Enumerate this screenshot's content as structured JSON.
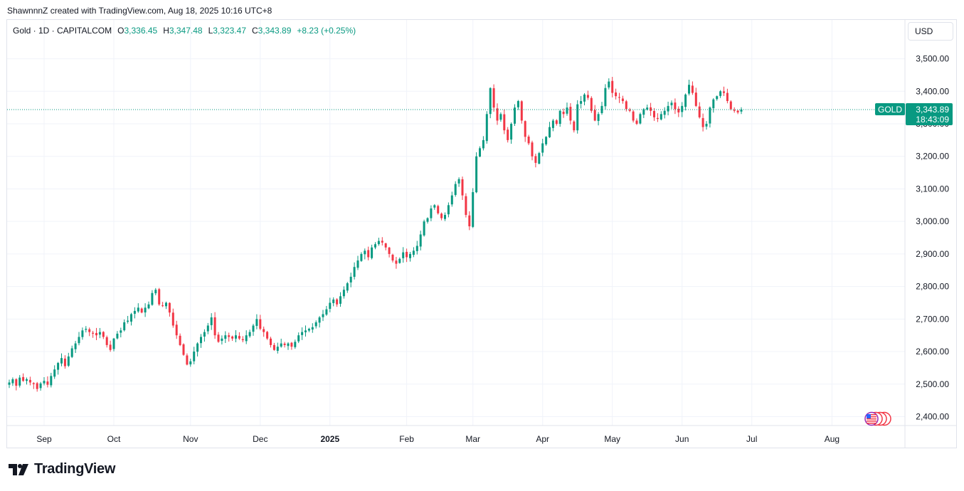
{
  "header": {
    "credit": "ShawnnnZ created with TradingView.com, Aug 18, 2025 10:16 UTC+8"
  },
  "legend": {
    "symbol": "Gold · 1D · CAPITALCOM",
    "o_label": "O",
    "o_value": "3,336.45",
    "h_label": "H",
    "h_value": "3,347.48",
    "l_label": "L",
    "l_value": "3,323.47",
    "c_label": "C",
    "c_value": "3,343.89",
    "change": "+8.23 (+0.25%)"
  },
  "currency_button": "USD",
  "price_tag": {
    "name": "GOLD",
    "price": "3,343.89",
    "countdown": "18:43:09"
  },
  "brand": {
    "name": "TradingView"
  },
  "colors": {
    "up": "#089981",
    "down": "#f23645",
    "grid": "#f0f3fa",
    "axis_text": "#131722",
    "border": "#e0e3eb"
  },
  "icons": [
    "us-flag-icon",
    "calendar-events-icon",
    "tradingview-logo-icon"
  ],
  "chart_data": {
    "type": "candlestick",
    "timeframe": "1D",
    "y_ticks": [
      2400,
      2500,
      2600,
      2700,
      2800,
      2900,
      3000,
      3100,
      3200,
      3300,
      3400,
      3500
    ],
    "y_tick_labels": [
      "2,400.00",
      "2,500.00",
      "2,600.00",
      "2,700.00",
      "2,800.00",
      "2,900.00",
      "3,000.00",
      "3,100.00",
      "3,200.00",
      "3,300.00",
      "3,400.00",
      "3,500.00"
    ],
    "x_labels": [
      {
        "label": "Sep",
        "bar": 10,
        "bold": false
      },
      {
        "label": "Oct",
        "bar": 30,
        "bold": false
      },
      {
        "label": "Nov",
        "bar": 52,
        "bold": false
      },
      {
        "label": "Dec",
        "bar": 72,
        "bold": false
      },
      {
        "label": "2025",
        "bar": 92,
        "bold": true
      },
      {
        "label": "Feb",
        "bar": 114,
        "bold": false
      },
      {
        "label": "Mar",
        "bar": 133,
        "bold": false
      },
      {
        "label": "Apr",
        "bar": 153,
        "bold": false
      },
      {
        "label": "May",
        "bar": 173,
        "bold": false
      },
      {
        "label": "Jun",
        "bar": 193,
        "bold": false
      },
      {
        "label": "Jul",
        "bar": 213,
        "bold": false
      },
      {
        "label": "Aug",
        "bar": 236,
        "bold": false
      }
    ],
    "last_price": 3343.89,
    "closes": [
      2505,
      2515,
      2495,
      2520,
      2510,
      2515,
      2505,
      2500,
      2485,
      2502,
      2510,
      2498,
      2525,
      2545,
      2565,
      2580,
      2555,
      2585,
      2610,
      2625,
      2645,
      2665,
      2670,
      2660,
      2655,
      2650,
      2660,
      2645,
      2620,
      2605,
      2640,
      2655,
      2665,
      2690,
      2695,
      2715,
      2725,
      2735,
      2720,
      2735,
      2745,
      2780,
      2790,
      2745,
      2740,
      2750,
      2720,
      2680,
      2650,
      2620,
      2590,
      2560,
      2570,
      2600,
      2625,
      2645,
      2660,
      2680,
      2705,
      2650,
      2630,
      2640,
      2650,
      2645,
      2640,
      2650,
      2640,
      2635,
      2650,
      2660,
      2680,
      2700,
      2670,
      2660,
      2640,
      2620,
      2605,
      2615,
      2625,
      2620,
      2625,
      2615,
      2630,
      2650,
      2660,
      2665,
      2670,
      2675,
      2690,
      2705,
      2715,
      2730,
      2750,
      2760,
      2745,
      2770,
      2790,
      2810,
      2830,
      2860,
      2880,
      2900,
      2910,
      2890,
      2920,
      2930,
      2940,
      2935,
      2920,
      2900,
      2880,
      2870,
      2885,
      2905,
      2890,
      2900,
      2910,
      2925,
      2960,
      3000,
      3010,
      3040,
      3050,
      3025,
      3010,
      3020,
      3050,
      3080,
      3115,
      3130,
      3080,
      3020,
      2985,
      3090,
      3200,
      3225,
      3250,
      3330,
      3410,
      3350,
      3310,
      3330,
      3280,
      3250,
      3300,
      3350,
      3370,
      3310,
      3260,
      3240,
      3200,
      3180,
      3210,
      3240,
      3260,
      3290,
      3310,
      3300,
      3340,
      3330,
      3350,
      3310,
      3280,
      3360,
      3370,
      3390,
      3380,
      3340,
      3310,
      3330,
      3355,
      3410,
      3430,
      3395,
      3385,
      3380,
      3370,
      3345,
      3340,
      3310,
      3300,
      3330,
      3345,
      3350,
      3340,
      3320,
      3315,
      3330,
      3340,
      3355,
      3365,
      3345,
      3335,
      3355,
      3390,
      3420,
      3395,
      3355,
      3320,
      3290,
      3300,
      3350,
      3375,
      3385,
      3400,
      3395,
      3370,
      3345,
      3340,
      3335,
      3344
    ]
  }
}
